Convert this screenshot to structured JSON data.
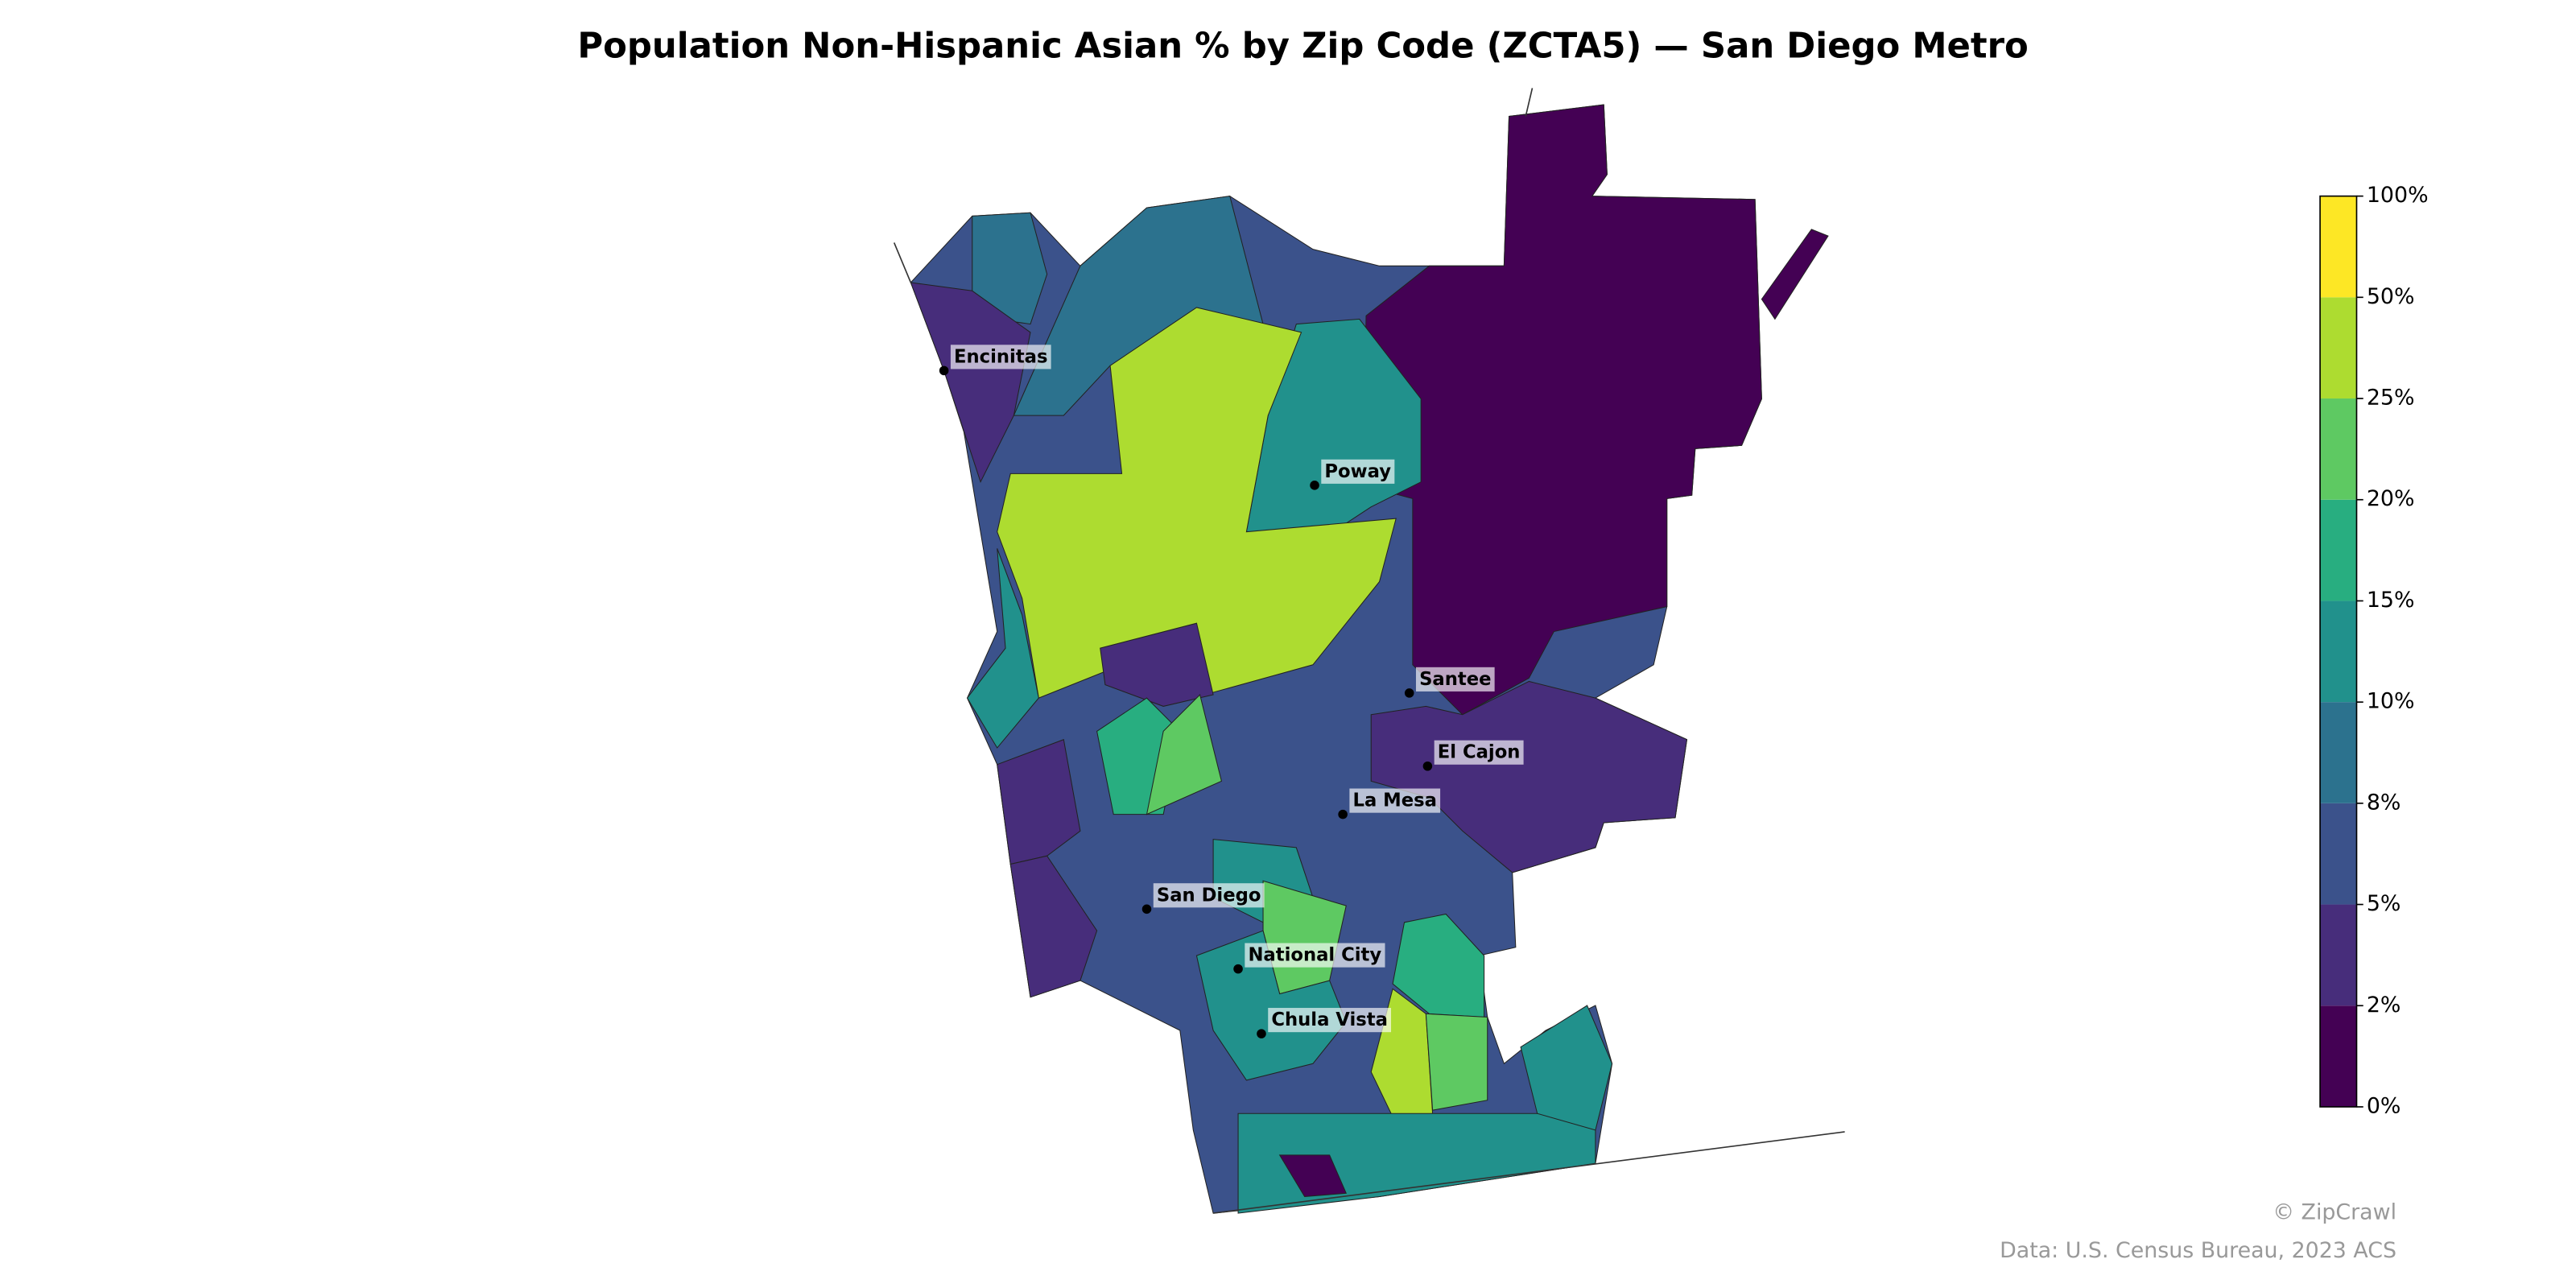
{
  "map": {
    "title": "Population Non-Hispanic Asian % by Zip Code (ZCTA5) — San Diego Metro",
    "cities": [
      "Encinitas",
      "Poway",
      "Santee",
      "El Cajon",
      "La Mesa",
      "San Diego",
      "National City",
      "Chula Vista"
    ],
    "colorbar": {
      "ticks": [
        {
          "value": 0,
          "label": "0%"
        },
        {
          "value": 2,
          "label": "2%"
        },
        {
          "value": 5,
          "label": "5%"
        },
        {
          "value": 8,
          "label": "8%"
        },
        {
          "value": 10,
          "label": "10%"
        },
        {
          "value": 15,
          "label": "15%"
        },
        {
          "value": 20,
          "label": "20%"
        },
        {
          "value": 25,
          "label": "25%"
        },
        {
          "value": 50,
          "label": "50%"
        },
        {
          "value": 100,
          "label": "100%"
        }
      ],
      "colors": [
        "#440154",
        "#472d7b",
        "#3b528b",
        "#2c728e",
        "#21918c",
        "#28ae80",
        "#5ec962",
        "#addc30",
        "#fde725"
      ]
    },
    "credits": [
      "© ZipCrawl",
      "Data: U.S. Census Bureau, 2023 ACS"
    ]
  }
}
